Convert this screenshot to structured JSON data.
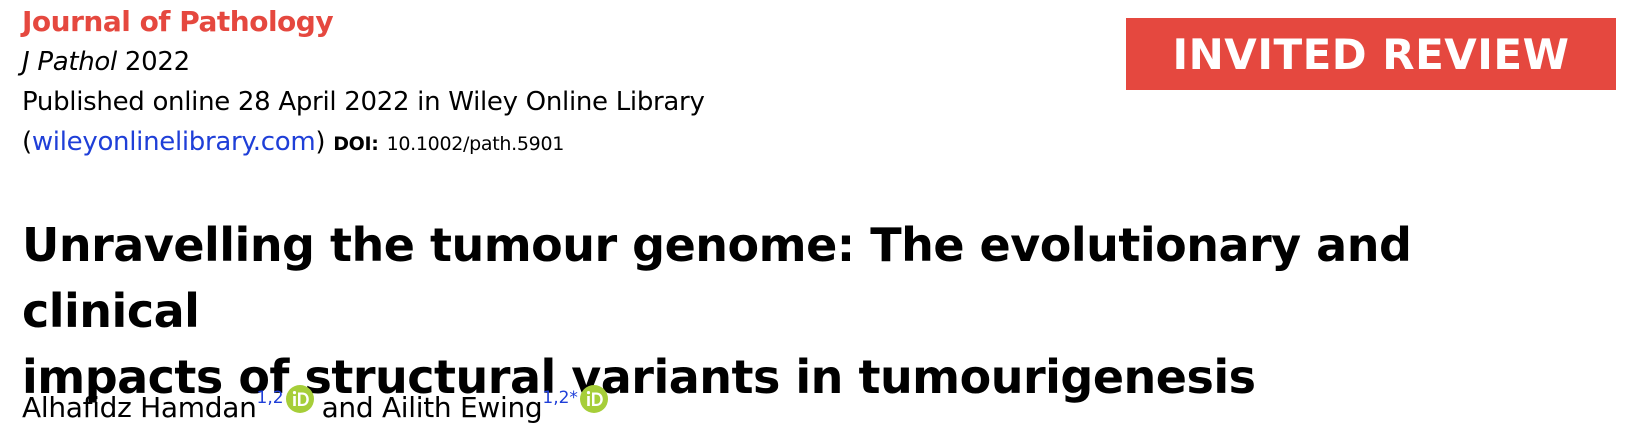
{
  "journal": {
    "name": "Journal of Pathology",
    "abbrev": "J Pathol",
    "year": "2022",
    "published_line": "Published online 28 April 2022 in Wiley Online Library",
    "paren_open": "(",
    "website": "wileyonlinelibrary.com",
    "paren_close": ")",
    "doi_label": "DOI:",
    "doi_value": "10.1002/path.5901"
  },
  "badge": {
    "label": "INVITED REVIEW",
    "color": "#e5483f"
  },
  "article": {
    "title_line1": "Unravelling the tumour genome: The evolutionary and clinical",
    "title_line2": "impacts of structural variants in tumourigenesis"
  },
  "authors": [
    {
      "name": "Alhafidz Hamdan",
      "affiliations": "1,2",
      "icon": "orcid-icon"
    },
    {
      "name": "Ailith Ewing",
      "affiliations": "1,2*",
      "icon": "orcid-icon"
    }
  ],
  "authors_conjunction": "and",
  "colors": {
    "accent_red": "#e5483f",
    "link_blue": "#1f3fd8",
    "orcid_green": "#a6ce39"
  }
}
